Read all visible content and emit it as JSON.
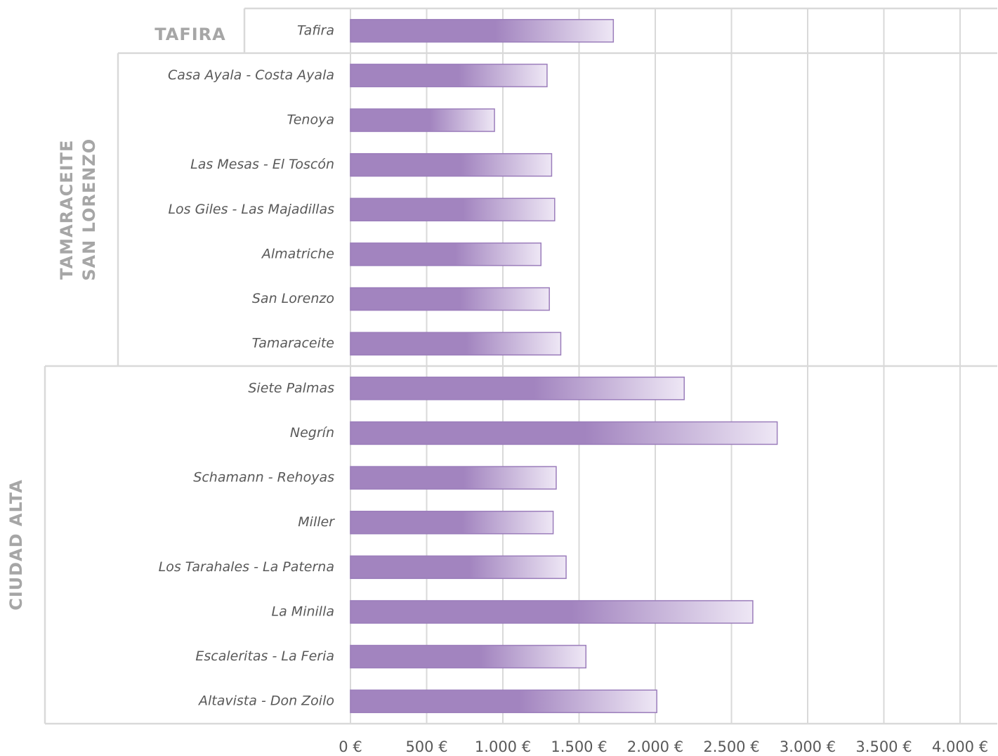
{
  "chart_data": {
    "type": "bar",
    "orientation": "horizontal",
    "color": "#a284bf",
    "grid": true,
    "groups": [
      {
        "label_lines": [
          "TAFIRA"
        ],
        "categories": [
          "Tafira"
        ],
        "values": [
          1725
        ]
      },
      {
        "label_lines": [
          "TAMARACEITE",
          "SAN LORENZO"
        ],
        "categories": [
          "Casa Ayala - Costa Ayala",
          "Tenoya",
          "Las Mesas - El Toscón",
          "Los Giles - Las Majadillas",
          "Almatriche",
          "San Lorenzo",
          "Tamaraceite"
        ],
        "values": [
          1290,
          945,
          1320,
          1340,
          1250,
          1305,
          1380
        ]
      },
      {
        "label_lines": [
          "CIUDAD ALTA"
        ],
        "categories": [
          "Siete Palmas",
          "Negrín",
          "Schamann - Rehoyas",
          "Miller",
          "Los Tarahales - La Paterna",
          "La Minilla",
          "Escaleritas - La Feria",
          "Altavista - Don Zoilo"
        ],
        "values": [
          2190,
          2800,
          1350,
          1330,
          1415,
          2640,
          1545,
          2010
        ]
      }
    ],
    "xlim": [
      0,
      4250
    ],
    "xticks": [
      {
        "value": 0,
        "label": "0 €"
      },
      {
        "value": 500,
        "label": "500 €"
      },
      {
        "value": 1000,
        "label": "1.000 €"
      },
      {
        "value": 1500,
        "label": "1.500 €"
      },
      {
        "value": 2000,
        "label": "2.000 €"
      },
      {
        "value": 2500,
        "label": "2.500 €"
      },
      {
        "value": 3000,
        "label": "3.000 €"
      },
      {
        "value": 3500,
        "label": "3.500 €"
      },
      {
        "value": 4000,
        "label": "4.000 €"
      }
    ]
  }
}
